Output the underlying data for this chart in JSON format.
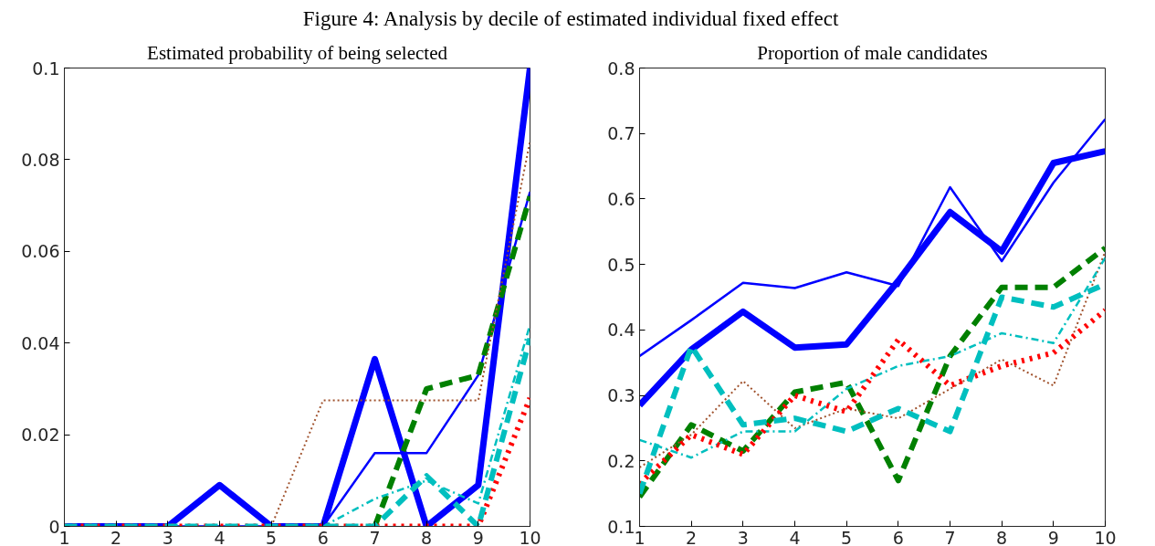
{
  "chart_data": [
    {
      "type": "line",
      "title": "Estimated probability of being selected",
      "annotations": [
        "Figure 4: Analysis by decile of estimated individual fixed effect"
      ],
      "x": [
        1,
        2,
        3,
        4,
        5,
        6,
        7,
        8,
        9,
        10
      ],
      "xlim": [
        1,
        10
      ],
      "xticks": [
        1,
        2,
        3,
        4,
        5,
        6,
        7,
        8,
        9,
        10
      ],
      "ylim": [
        0,
        0.1
      ],
      "yticks": [
        0,
        0.02,
        0.04,
        0.06,
        0.08,
        0.1
      ],
      "grid": false,
      "series": [
        {
          "color": "#0000ff",
          "line_style": "solid",
          "values": [
            0,
            0,
            0,
            0.009,
            0,
            0,
            0.0365,
            0,
            0.009,
            0.1
          ]
        },
        {
          "color": "#0000ff",
          "line_style": "solid",
          "values": [
            0,
            0,
            0,
            0,
            0,
            0,
            0.016,
            0.016,
            0.033,
            0.073
          ]
        },
        {
          "color": "#008000",
          "line_style": "dashed",
          "values": [
            null,
            null,
            null,
            null,
            null,
            null,
            0,
            0.03,
            0.033,
            0.072
          ]
        },
        {
          "color": "#a0522d",
          "line_style": "dotted",
          "values": [
            null,
            null,
            null,
            null,
            0,
            0.0275,
            0.0275,
            0.0275,
            0.0275,
            0.084
          ]
        },
        {
          "color": "#00bfbf",
          "line_style": "dashdot",
          "values": [
            null,
            null,
            null,
            null,
            null,
            0,
            0.006,
            0.01,
            0.005,
            0.044
          ]
        },
        {
          "color": "#ff0000",
          "line_style": "dotted",
          "values": [
            0,
            0,
            0,
            0,
            0,
            0,
            0,
            0,
            0,
            0.028
          ]
        },
        {
          "color": "#00bfbf",
          "line_style": "dashed",
          "values": [
            0,
            0,
            0,
            0,
            0,
            0,
            0,
            0.011,
            0,
            0.041
          ]
        }
      ]
    },
    {
      "type": "line",
      "title": "Proportion of male candidates",
      "x": [
        1,
        2,
        3,
        4,
        5,
        6,
        7,
        8,
        9,
        10
      ],
      "xlim": [
        1,
        10
      ],
      "xticks": [
        1,
        2,
        3,
        4,
        5,
        6,
        7,
        8,
        9,
        10
      ],
      "ylim": [
        0.1,
        0.8
      ],
      "yticks": [
        0.1,
        0.2,
        0.3,
        0.4,
        0.5,
        0.6,
        0.7,
        0.8
      ],
      "grid": false,
      "series": [
        {
          "color": "#0000ff",
          "line_style": "solid",
          "values": [
            0.285,
            0.37,
            0.428,
            0.373,
            0.378,
            0.475,
            0.58,
            0.52,
            0.655,
            0.673
          ]
        },
        {
          "color": "#0000ff",
          "line_style": "solid",
          "values": [
            0.36,
            0.415,
            0.472,
            0.464,
            0.488,
            0.467,
            0.618,
            0.505,
            0.625,
            0.722
          ]
        },
        {
          "color": "#008000",
          "line_style": "dashed",
          "values": [
            0.145,
            0.255,
            0.215,
            0.305,
            0.32,
            0.17,
            0.36,
            0.465,
            0.465,
            0.525
          ]
        },
        {
          "color": "#a0522d",
          "line_style": "dotted",
          "values": [
            0.19,
            0.24,
            0.322,
            0.25,
            0.28,
            0.265,
            0.31,
            0.355,
            0.315,
            0.52
          ]
        },
        {
          "color": "#00bfbf",
          "line_style": "dashdot",
          "values": [
            0.232,
            0.205,
            0.245,
            0.245,
            0.31,
            0.345,
            0.36,
            0.395,
            0.38,
            0.51
          ]
        },
        {
          "color": "#ff0000",
          "line_style": "dotted",
          "values": [
            0.165,
            0.24,
            0.21,
            0.3,
            0.275,
            0.385,
            0.315,
            0.345,
            0.365,
            0.43
          ]
        },
        {
          "color": "#00bfbf",
          "line_style": "dashed",
          "values": [
            0.15,
            0.375,
            0.255,
            0.265,
            0.245,
            0.28,
            0.245,
            0.45,
            0.435,
            0.47
          ]
        }
      ]
    }
  ]
}
